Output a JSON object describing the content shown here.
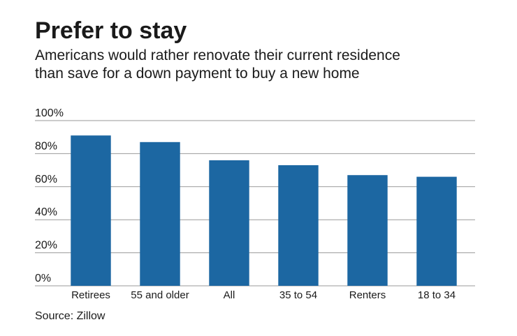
{
  "chart_data": {
    "type": "bar",
    "title": "Prefer to stay",
    "subtitle": [
      "Americans would rather renovate their current residence",
      "than save for a down payment to buy a new home"
    ],
    "categories": [
      "Retirees",
      "55 and older",
      "All",
      "35 to 54",
      "Renters",
      "18 to 34"
    ],
    "values": [
      91,
      87,
      76,
      73,
      67,
      66
    ],
    "color": "#1c67a2",
    "ylim": [
      0,
      100
    ],
    "yticks": [
      {
        "value": 0,
        "label": "0%"
      },
      {
        "value": 20,
        "label": "20%"
      },
      {
        "value": 40,
        "label": "40%"
      },
      {
        "value": 60,
        "label": "60%"
      },
      {
        "value": 80,
        "label": "80%"
      },
      {
        "value": 100,
        "label": "100%"
      }
    ],
    "grid": true,
    "source": "Source: Zillow"
  }
}
